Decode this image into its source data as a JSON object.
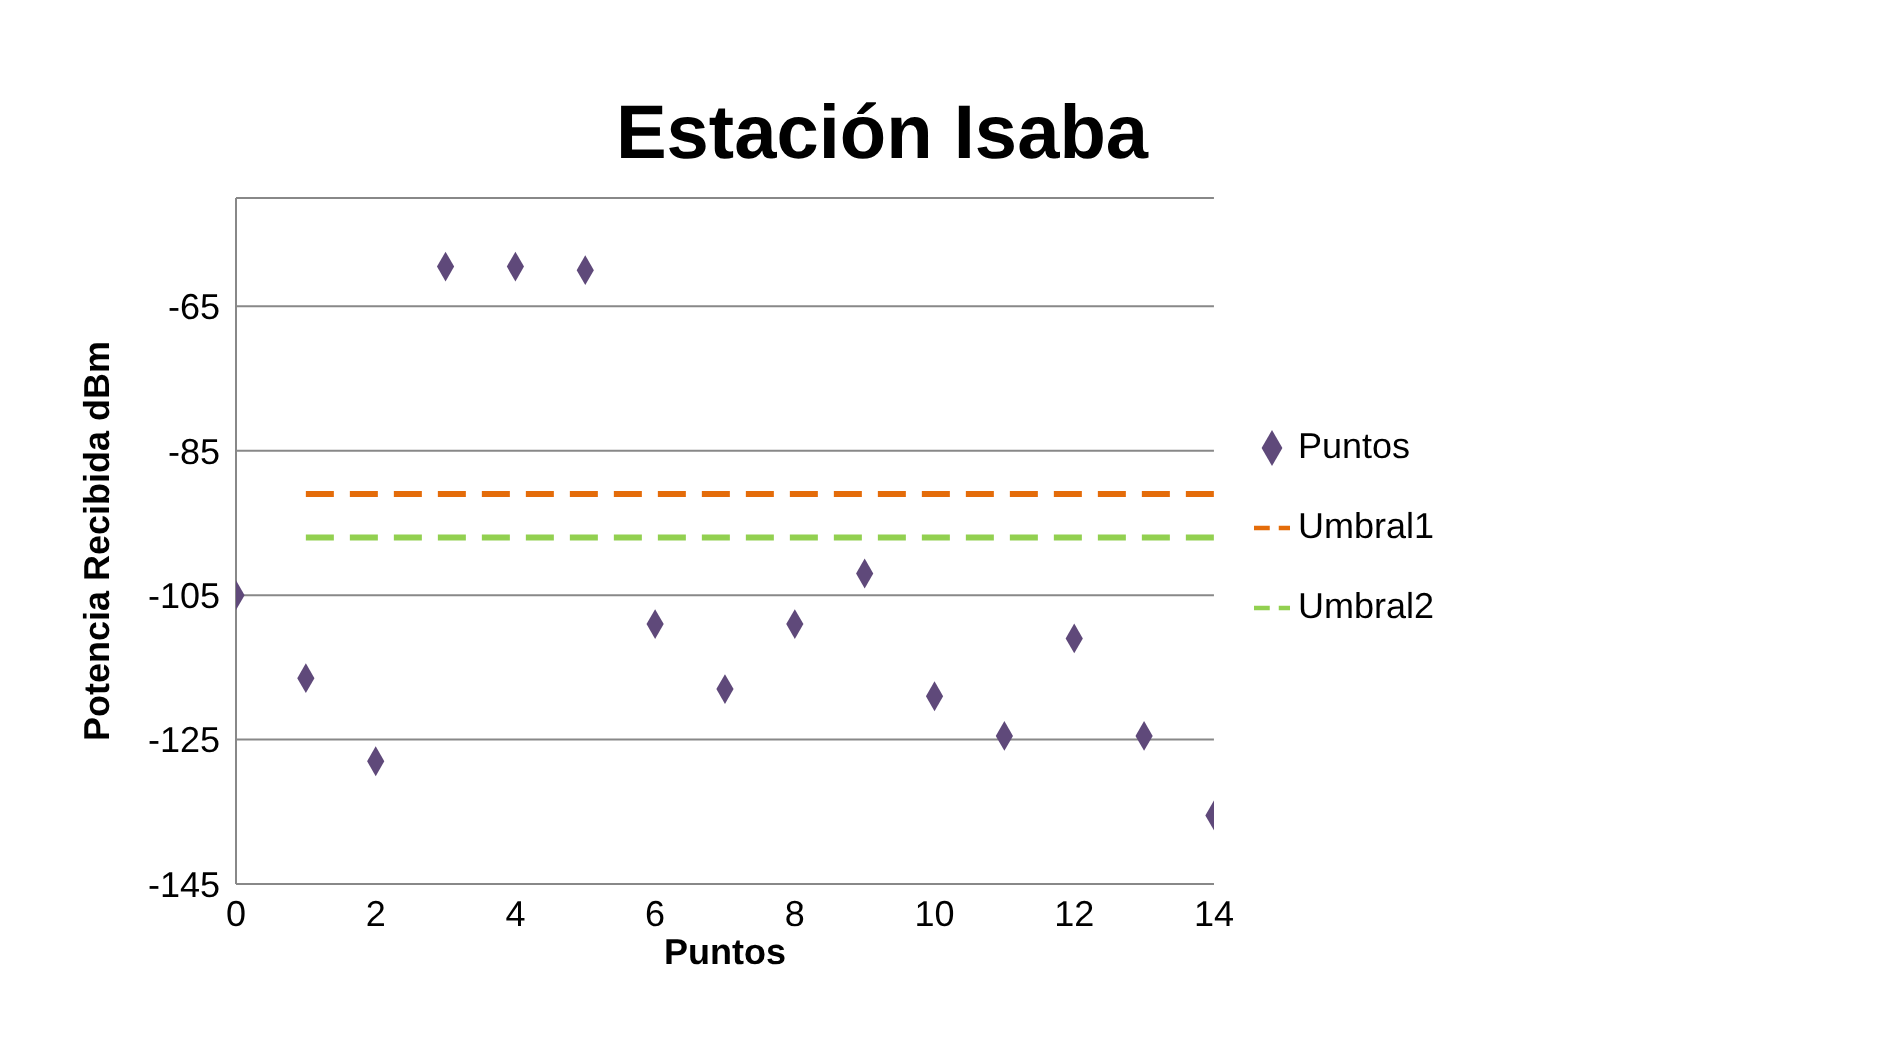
{
  "chart_data": {
    "type": "scatter",
    "title": "Estación Isaba",
    "xlabel": "Puntos",
    "ylabel": "Potencia Recibida dBm",
    "xlim": [
      0,
      14
    ],
    "xticks": [
      0,
      2,
      4,
      6,
      8,
      10,
      12,
      14
    ],
    "ylim": [
      -145,
      -50
    ],
    "yticks": [
      -145,
      -125,
      -105,
      -85,
      -65
    ],
    "grid": "y",
    "legend": "right",
    "series": [
      {
        "name": "Puntos",
        "marker": "diamond",
        "color": "#5f497a",
        "x": [
          0,
          1,
          2,
          3,
          4,
          5,
          6,
          7,
          8,
          9,
          10,
          11,
          12,
          13,
          14
        ],
        "values": [
          -105,
          -116.5,
          -128,
          -59.5,
          -59.5,
          -60,
          -109,
          -118,
          -109,
          -102,
          -119,
          -124.5,
          -111,
          -124.5,
          -135.5
        ]
      },
      {
        "name": "Umbral1",
        "type": "line",
        "line_style": "dashed",
        "marker": "none",
        "color": "#e46c0a",
        "x": [
          1,
          14
        ],
        "values": [
          -91,
          -91
        ]
      },
      {
        "name": "Umbral2",
        "type": "line",
        "line_style": "dashed",
        "marker": "none",
        "color": "#92d050",
        "x": [
          1,
          14
        ],
        "values": [
          -97,
          -97
        ]
      }
    ]
  }
}
